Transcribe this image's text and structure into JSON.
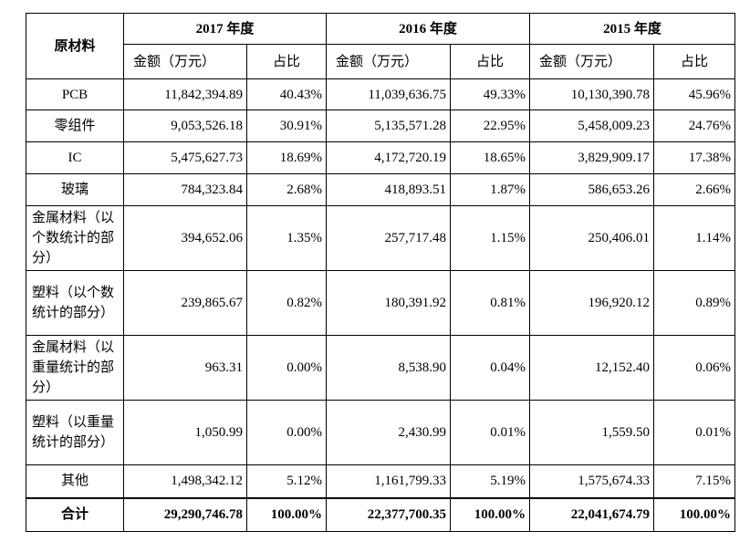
{
  "table": {
    "corner": "原材料",
    "years": [
      "2017 年度",
      "2016 年度",
      "2015 年度"
    ],
    "subheaders": [
      "金额（万元）",
      "占比",
      "金额（万元）",
      "占比",
      "金额（万元）",
      "占比"
    ],
    "rows": [
      [
        "PCB",
        "11,842,394.89",
        "40.43%",
        "11,039,636.75",
        "49.33%",
        "10,130,390.78",
        "45.96%"
      ],
      [
        "零组件",
        "9,053,526.18",
        "30.91%",
        "5,135,571.28",
        "22.95%",
        "5,458,009.23",
        "24.76%"
      ],
      [
        "IC",
        "5,475,627.73",
        "18.69%",
        "4,172,720.19",
        "18.65%",
        "3,829,909.17",
        "17.38%"
      ],
      [
        "玻璃",
        "784,323.84",
        "2.68%",
        "418,893.51",
        "1.87%",
        "586,653.26",
        "2.66%"
      ],
      [
        "金属材料（以个数统计的部分）",
        "394,652.06",
        "1.35%",
        "257,717.48",
        "1.15%",
        "250,406.01",
        "1.14%"
      ],
      [
        "塑料（以个数统计的部分）",
        "239,865.67",
        "0.82%",
        "180,391.92",
        "0.81%",
        "196,920.12",
        "0.89%"
      ],
      [
        "金属材料（以重量统计的部分）",
        "963.31",
        "0.00%",
        "8,538.90",
        "0.04%",
        "12,152.40",
        "0.06%"
      ],
      [
        "塑料（以重量统计的部分）",
        "1,050.99",
        "0.00%",
        "2,430.99",
        "0.01%",
        "1,559.50",
        "0.01%"
      ],
      [
        "其他",
        "1,498,342.12",
        "5.12%",
        "1,161,799.33",
        "5.19%",
        "1,575,674.33",
        "7.15%"
      ]
    ],
    "total": [
      "合计",
      "29,290,746.78",
      "100.00%",
      "22,377,700.35",
      "100.00%",
      "22,041,674.79",
      "100.00%"
    ]
  }
}
